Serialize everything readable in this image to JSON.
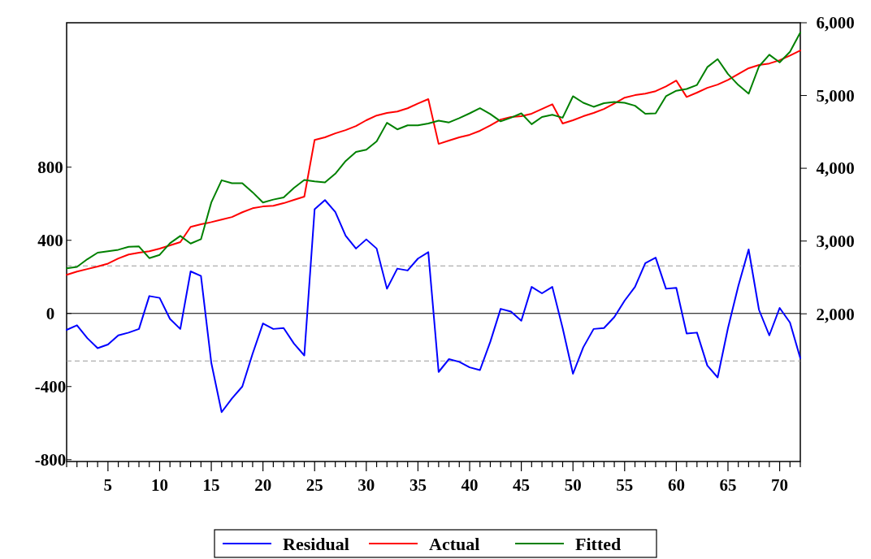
{
  "chart_data": {
    "type": "line",
    "x": [
      1,
      2,
      3,
      4,
      5,
      6,
      7,
      8,
      9,
      10,
      11,
      12,
      13,
      14,
      15,
      16,
      17,
      18,
      19,
      20,
      21,
      22,
      23,
      24,
      25,
      26,
      27,
      28,
      29,
      30,
      31,
      32,
      33,
      34,
      35,
      36,
      37,
      38,
      39,
      40,
      41,
      42,
      43,
      44,
      45,
      46,
      47,
      48,
      49,
      50,
      51,
      52,
      53,
      54,
      55,
      56,
      57,
      58,
      59,
      60,
      61,
      62,
      63,
      64,
      65,
      66,
      67,
      68,
      69,
      70,
      71,
      72
    ],
    "series": [
      {
        "name": "Residual",
        "color": "#0000ff",
        "axis": "y",
        "values": [
          -90,
          -65,
          -135,
          -190,
          -170,
          -120,
          -105,
          -85,
          95,
          85,
          -30,
          -85,
          230,
          205,
          -270,
          -540,
          -465,
          -400,
          -220,
          -55,
          -85,
          -80,
          -165,
          -230,
          570,
          620,
          555,
          425,
          355,
          405,
          355,
          135,
          245,
          235,
          300,
          335,
          -320,
          -250,
          -265,
          -295,
          -310,
          -155,
          25,
          10,
          -40,
          145,
          110,
          145,
          -80,
          -330,
          -185,
          -85,
          -80,
          -20,
          70,
          145,
          275,
          305,
          135,
          140,
          -110,
          -105,
          -285,
          -350,
          -80,
          150,
          350,
          20,
          -120,
          30,
          -50,
          -245
        ]
      },
      {
        "name": "Actual",
        "color": "#ff0000",
        "axis": "y2",
        "values": [
          2535,
          2580,
          2615,
          2650,
          2690,
          2760,
          2815,
          2840,
          2860,
          2895,
          2940,
          2985,
          3195,
          3230,
          3260,
          3295,
          3330,
          3395,
          3450,
          3475,
          3485,
          3520,
          3565,
          3610,
          4390,
          4425,
          4480,
          4525,
          4580,
          4660,
          4725,
          4760,
          4780,
          4825,
          4890,
          4950,
          4335,
          4380,
          4425,
          4460,
          4515,
          4590,
          4670,
          4705,
          4715,
          4750,
          4815,
          4880,
          4615,
          4660,
          4715,
          4760,
          4815,
          4890,
          4970,
          5005,
          5025,
          5060,
          5125,
          5205,
          4980,
          5040,
          5105,
          5150,
          5215,
          5295,
          5375,
          5420,
          5440,
          5485,
          5550,
          5620
        ]
      },
      {
        "name": "Fitted",
        "color": "#008000",
        "axis": "y2",
        "values": [
          2625,
          2645,
          2750,
          2840,
          2860,
          2880,
          2920,
          2925,
          2765,
          2810,
          2970,
          3070,
          2965,
          3025,
          3530,
          3835,
          3795,
          3795,
          3670,
          3530,
          3570,
          3600,
          3730,
          3840,
          3820,
          3805,
          3925,
          4100,
          4225,
          4255,
          4370,
          4625,
          4535,
          4590,
          4590,
          4615,
          4655,
          4630,
          4690,
          4755,
          4825,
          4745,
          4645,
          4695,
          4755,
          4605,
          4705,
          4735,
          4695,
          4990,
          4900,
          4845,
          4895,
          4910,
          4900,
          4860,
          4750,
          4755,
          4990,
          5065,
          5090,
          5145,
          5390,
          5500,
          5295,
          5145,
          5025,
          5400,
          5560,
          5455,
          5600,
          5865
        ]
      }
    ],
    "xlim": [
      1,
      72
    ],
    "xticks": [
      {
        "value": 1,
        "label": null
      },
      {
        "value": 2,
        "label": null
      },
      {
        "value": 3,
        "label": null
      },
      {
        "value": 4,
        "label": null
      },
      5,
      {
        "value": 6,
        "label": null
      },
      {
        "value": 7,
        "label": null
      },
      {
        "value": 8,
        "label": null
      },
      {
        "value": 9,
        "label": null
      },
      10,
      {
        "value": 11,
        "label": null
      },
      {
        "value": 12,
        "label": null
      },
      {
        "value": 13,
        "label": null
      },
      {
        "value": 14,
        "label": null
      },
      15,
      {
        "value": 16,
        "label": null
      },
      {
        "value": 17,
        "label": null
      },
      {
        "value": 18,
        "label": null
      },
      {
        "value": 19,
        "label": null
      },
      20,
      {
        "value": 21,
        "label": null
      },
      {
        "value": 22,
        "label": null
      },
      {
        "value": 23,
        "label": null
      },
      {
        "value": 24,
        "label": null
      },
      25,
      {
        "value": 26,
        "label": null
      },
      {
        "value": 27,
        "label": null
      },
      {
        "value": 28,
        "label": null
      },
      {
        "value": 29,
        "label": null
      },
      30,
      {
        "value": 31,
        "label": null
      },
      {
        "value": 32,
        "label": null
      },
      {
        "value": 33,
        "label": null
      },
      {
        "value": 34,
        "label": null
      },
      35,
      {
        "value": 36,
        "label": null
      },
      {
        "value": 37,
        "label": null
      },
      {
        "value": 38,
        "label": null
      },
      {
        "value": 39,
        "label": null
      },
      40,
      {
        "value": 41,
        "label": null
      },
      {
        "value": 42,
        "label": null
      },
      {
        "value": 43,
        "label": null
      },
      {
        "value": 44,
        "label": null
      },
      45,
      {
        "value": 46,
        "label": null
      },
      {
        "value": 47,
        "label": null
      },
      {
        "value": 48,
        "label": null
      },
      {
        "value": 49,
        "label": null
      },
      50,
      {
        "value": 51,
        "label": null
      },
      {
        "value": 52,
        "label": null
      },
      {
        "value": 53,
        "label": null
      },
      {
        "value": 54,
        "label": null
      },
      55,
      {
        "value": 56,
        "label": null
      },
      {
        "value": 57,
        "label": null
      },
      {
        "value": 58,
        "label": null
      },
      {
        "value": 59,
        "label": null
      },
      60,
      {
        "value": 61,
        "label": null
      },
      {
        "value": 62,
        "label": null
      },
      {
        "value": 63,
        "label": null
      },
      {
        "value": 64,
        "label": null
      },
      65,
      {
        "value": 66,
        "label": null
      },
      {
        "value": 67,
        "label": null
      },
      {
        "value": 68,
        "label": null
      },
      {
        "value": 69,
        "label": null
      },
      70,
      {
        "value": 71,
        "label": null
      },
      {
        "value": 72,
        "label": null
      }
    ],
    "ylim": [
      -810,
      1590
    ],
    "yticks": [
      -800,
      -400,
      0,
      400,
      800
    ],
    "y2lim": [
      -30,
      6000
    ],
    "y2ticks": [
      {
        "value": 2000,
        "label": "2,000"
      },
      {
        "value": 3000,
        "label": "3,000"
      },
      {
        "value": 4000,
        "label": "4,000"
      },
      {
        "value": 5000,
        "label": "5,000"
      },
      {
        "value": 6000,
        "label": "6,000"
      }
    ],
    "ref_lines": [
      {
        "axis": "y",
        "value": 0,
        "color": "#000000",
        "line_style": "solid"
      },
      {
        "axis": "y",
        "value": 260,
        "color": "#999999",
        "line_style": "dashed"
      },
      {
        "axis": "y",
        "value": -260,
        "color": "#999999",
        "line_style": "dashed"
      }
    ],
    "grid": false,
    "legend": "bottom",
    "marker": "none",
    "line_style": "solid"
  }
}
